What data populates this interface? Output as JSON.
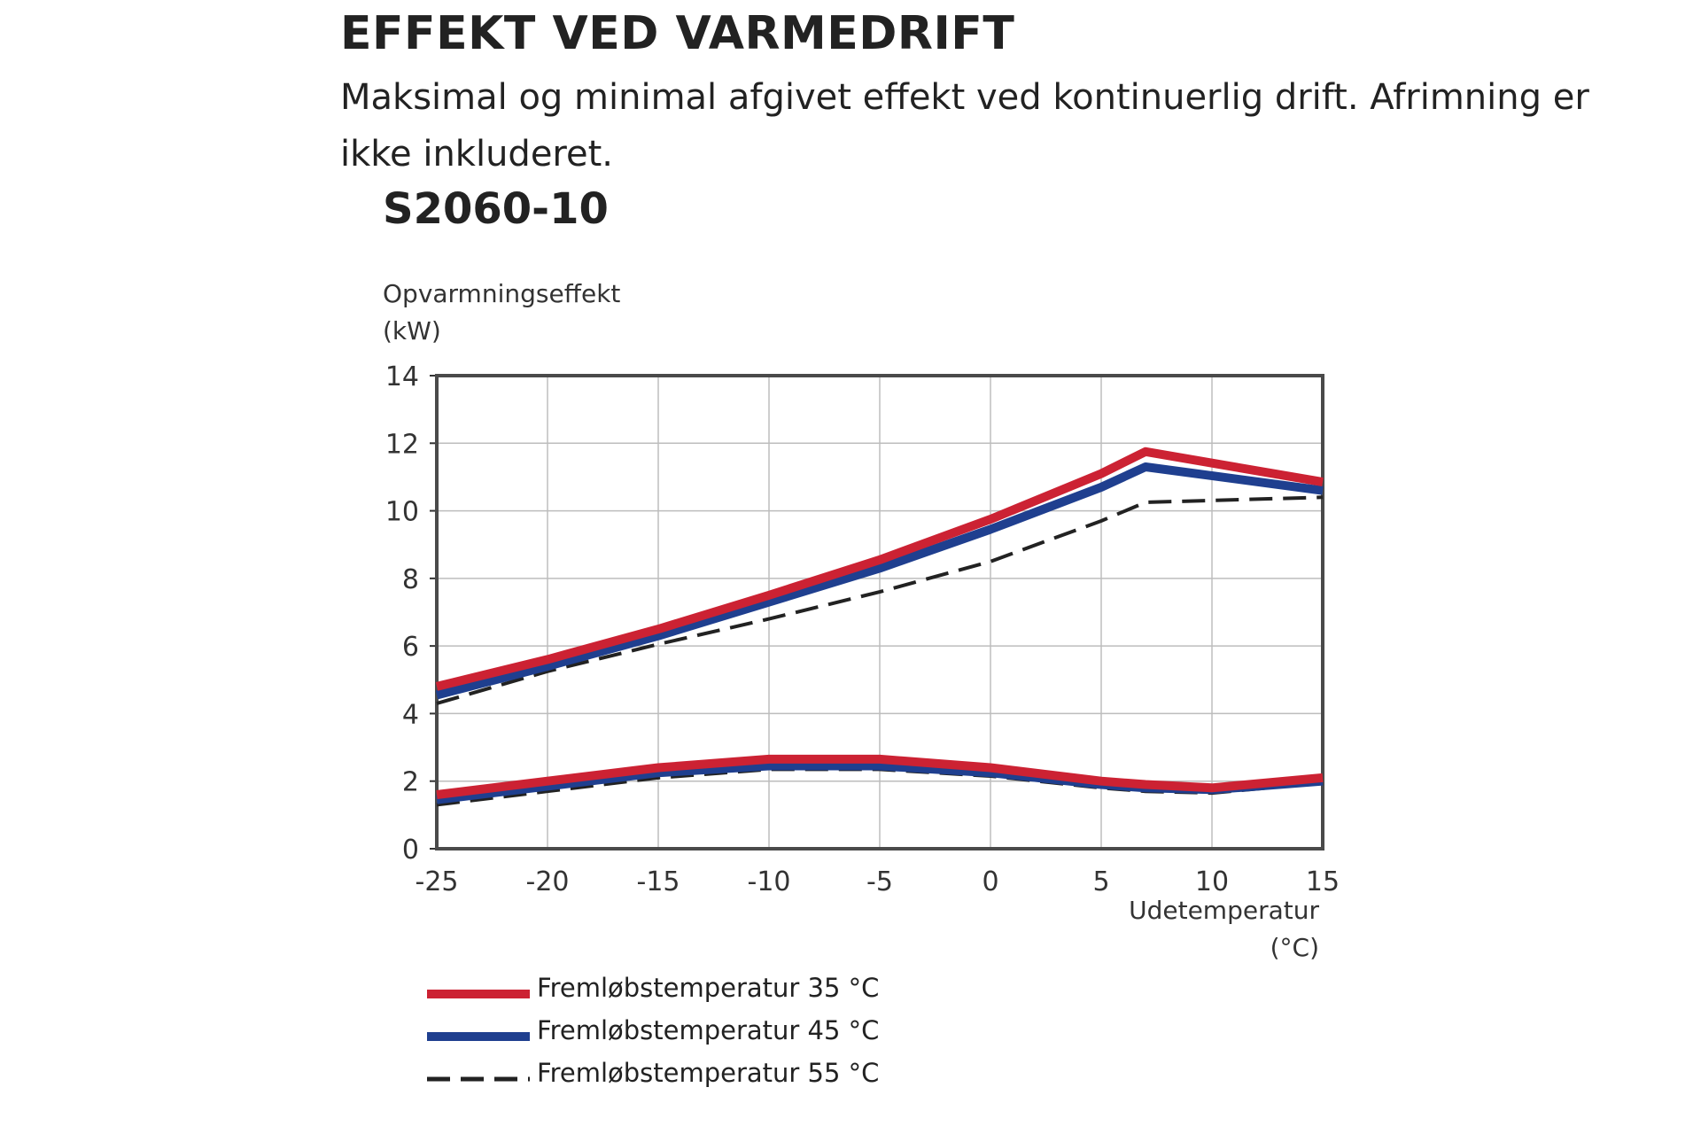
{
  "header": {
    "title": "EFFEKT VED VARMEDRIFT",
    "subtitle": "Maksimal og minimal afgivet effekt ved kontinuerlig drift. Afrimning er ikke inkluderet.",
    "model": "S2060-10"
  },
  "chart_data": {
    "type": "line",
    "title": "S2060-10",
    "ylabel_lines": [
      "Opvarmningseffekt",
      "(kW)"
    ],
    "xlabel_lines": [
      "Udetemperatur",
      "(°C)"
    ],
    "xlim": [
      -25,
      15
    ],
    "ylim": [
      0,
      14
    ],
    "x_ticks": [
      -25,
      -20,
      -15,
      -10,
      -5,
      0,
      5,
      10,
      15
    ],
    "x_tick_labels": [
      "-25",
      "-20",
      "-15",
      "-10",
      "-5",
      "0",
      "5",
      "10",
      "15"
    ],
    "y_ticks": [
      0,
      2,
      4,
      6,
      8,
      10,
      12,
      14
    ],
    "y_tick_labels": [
      "0",
      "2",
      "4",
      "6",
      "8",
      "10",
      "12",
      "14"
    ],
    "grid": true,
    "legend_position": "bottom",
    "series": [
      {
        "name": "Fremløbstemperatur 35 °C",
        "color": "#cc2233",
        "style": "solid",
        "max": {
          "x": [
            -25,
            -20,
            -15,
            -10,
            -5,
            0,
            5,
            7,
            15
          ],
          "y": [
            4.8,
            5.6,
            6.5,
            7.5,
            8.55,
            9.75,
            11.1,
            11.75,
            10.85
          ]
        },
        "min": {
          "x": [
            -25,
            -20,
            -15,
            -10,
            -5,
            0,
            5,
            7,
            10,
            15
          ],
          "y": [
            1.6,
            2.0,
            2.4,
            2.65,
            2.65,
            2.4,
            2.0,
            1.9,
            1.8,
            2.1
          ]
        }
      },
      {
        "name": "Fremløbstemperatur 45 °C",
        "color": "#1f3f8f",
        "style": "solid",
        "max": {
          "x": [
            -25,
            -20,
            -15,
            -10,
            -5,
            0,
            5,
            7,
            15
          ],
          "y": [
            4.55,
            5.4,
            6.3,
            7.3,
            8.3,
            9.45,
            10.7,
            11.3,
            10.6
          ]
        },
        "min": {
          "x": [
            -25,
            -20,
            -15,
            -10,
            -5,
            0,
            5,
            7,
            10,
            15
          ],
          "y": [
            1.45,
            1.85,
            2.25,
            2.45,
            2.45,
            2.25,
            1.9,
            1.8,
            1.75,
            2.0
          ]
        }
      },
      {
        "name": "Fremløbstemperatur 55 °C",
        "color": "#222222",
        "style": "dashed",
        "max": {
          "x": [
            -25,
            -20,
            -15,
            -10,
            -5,
            0,
            5,
            7,
            15
          ],
          "y": [
            4.3,
            5.25,
            6.05,
            6.8,
            7.6,
            8.5,
            9.7,
            10.25,
            10.4
          ]
        },
        "min": {
          "x": [
            -25,
            -20,
            -15,
            -10,
            -5,
            0,
            5,
            7,
            10,
            15
          ],
          "y": [
            1.3,
            1.7,
            2.1,
            2.35,
            2.35,
            2.15,
            1.8,
            1.7,
            1.65,
            1.95
          ]
        }
      }
    ]
  }
}
